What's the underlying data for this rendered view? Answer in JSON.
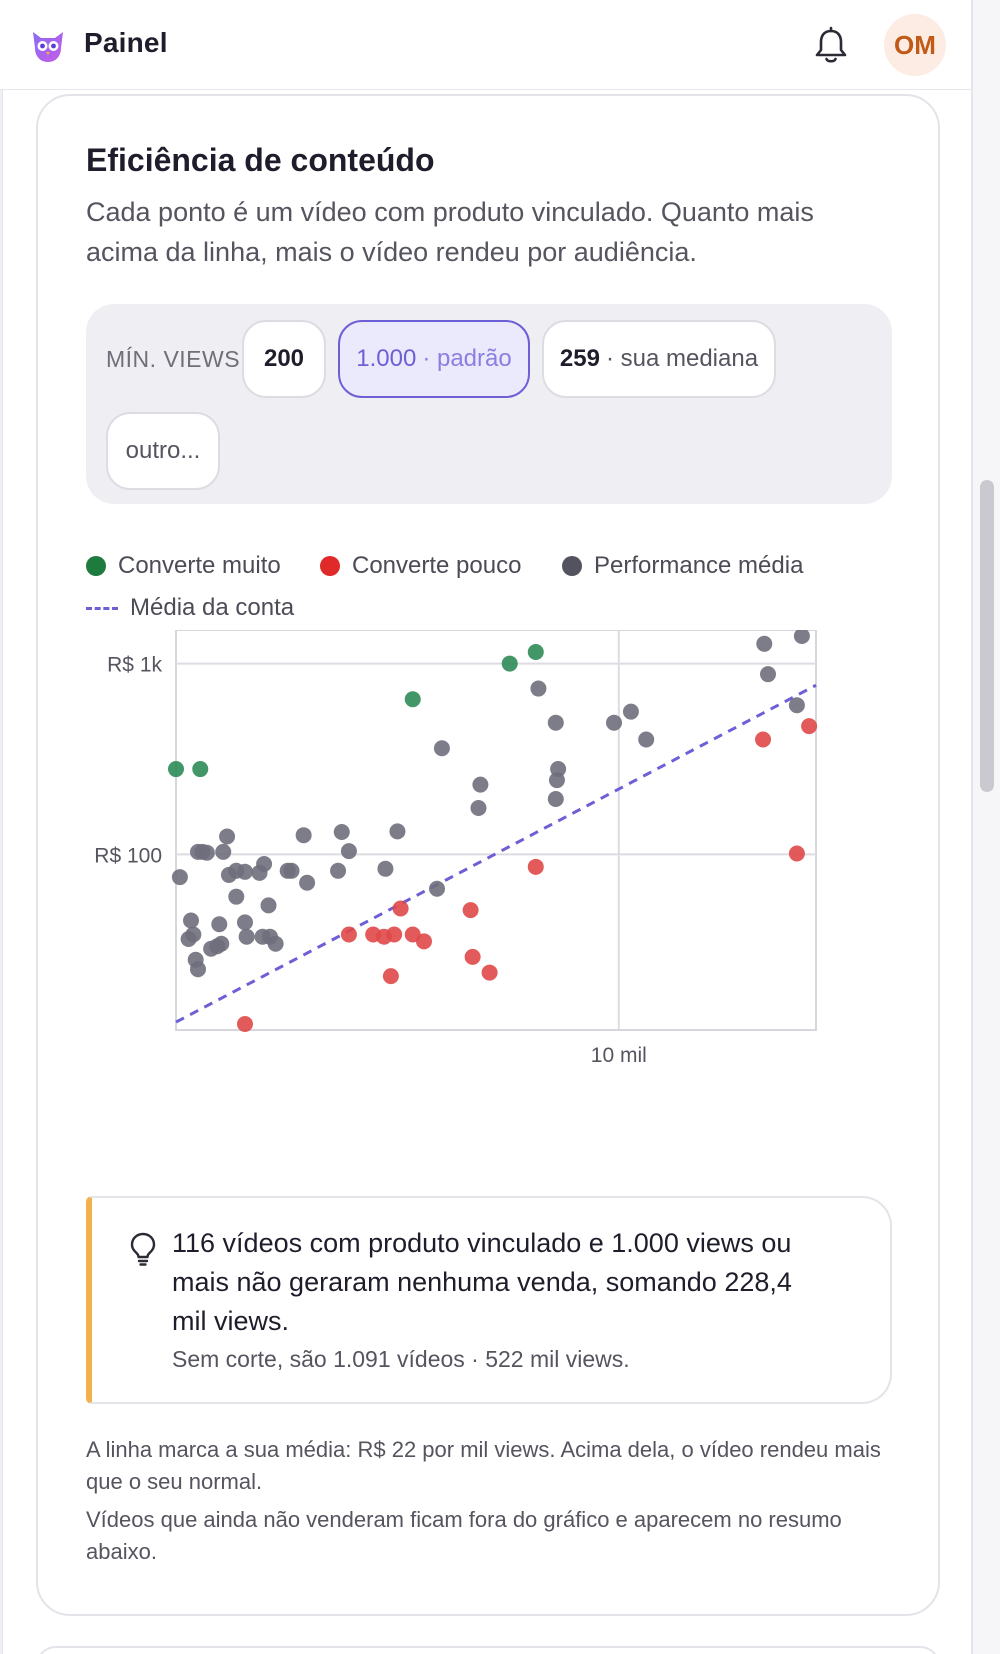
{
  "header": {
    "title": "Painel",
    "avatar_initials": "OM",
    "brand_color": "#7b5cf0",
    "logo_icon": "owl-logo-icon",
    "notification_icon": "bell-icon"
  },
  "card": {
    "title": "Eficiência de conteúdo",
    "subtitle": "Cada ponto é um vídeo com produto vinculado. Quanto mais acima da linha, mais o vídeo rendeu por audiência."
  },
  "filter": {
    "label": "MÍN. VIEWS",
    "chips": [
      {
        "value": "200",
        "suffix": "",
        "selected": false
      },
      {
        "value": "1.000",
        "suffix": "· padrão",
        "selected": true
      },
      {
        "value": "259",
        "suffix": "· sua mediana",
        "selected": false
      },
      {
        "value": "outro...",
        "suffix": "",
        "selected": false
      }
    ]
  },
  "legend": {
    "high": "Converte muito",
    "low": "Converte pouco",
    "mid": "Performance média",
    "avg_line": "Média da conta"
  },
  "colors": {
    "high": "#2e8b57",
    "low": "#e04848",
    "mid": "#6f6e7c",
    "avg_line": "#6d5fd6",
    "insight_accent": "#f2b14c"
  },
  "chart_data": {
    "type": "scatter",
    "x_scale": "log",
    "y_scale": "log",
    "xlim": [
      600,
      35000
    ],
    "ylim": [
      12,
      1500
    ],
    "x_ticks": [
      {
        "value": 10000,
        "label": "10 mil"
      }
    ],
    "y_ticks": [
      {
        "value": 1000,
        "label": "R$ 1k"
      },
      {
        "value": 100,
        "label": "R$ 100"
      }
    ],
    "grid": true,
    "average_line": {
      "label": "Média da conta",
      "revenue_per_1000_views": 22
    },
    "series": [
      {
        "name": "Converte muito",
        "category": "high",
        "points": [
          [
            600,
            280
          ],
          [
            700,
            280
          ],
          [
            2700,
            650
          ],
          [
            5000,
            1000
          ],
          [
            5900,
            1150
          ]
        ]
      },
      {
        "name": "Converte pouco",
        "category": "low",
        "points": [
          [
            930,
            12
          ],
          [
            1800,
            38
          ],
          [
            2100,
            38
          ],
          [
            2250,
            37
          ],
          [
            2500,
            52
          ],
          [
            2350,
            23
          ],
          [
            2400,
            38
          ],
          [
            2700,
            38
          ],
          [
            2900,
            35
          ],
          [
            3900,
            51
          ],
          [
            3950,
            29
          ],
          [
            4400,
            24
          ],
          [
            5900,
            86
          ],
          [
            25000,
            400
          ],
          [
            33500,
            470
          ],
          [
            31000,
            101
          ]
        ]
      },
      {
        "name": "Performance média",
        "category": "mid",
        "points": [
          [
            615,
            76
          ],
          [
            650,
            36
          ],
          [
            660,
            45
          ],
          [
            670,
            38
          ],
          [
            680,
            28
          ],
          [
            690,
            25
          ],
          [
            690,
            103
          ],
          [
            710,
            103
          ],
          [
            730,
            102
          ],
          [
            750,
            32
          ],
          [
            780,
            33
          ],
          [
            790,
            43
          ],
          [
            800,
            34
          ],
          [
            810,
            103
          ],
          [
            830,
            124
          ],
          [
            840,
            78
          ],
          [
            880,
            60
          ],
          [
            880,
            82
          ],
          [
            930,
            81
          ],
          [
            930,
            44
          ],
          [
            940,
            37
          ],
          [
            1020,
            80
          ],
          [
            1040,
            37
          ],
          [
            1050,
            89
          ],
          [
            1080,
            54
          ],
          [
            1090,
            37
          ],
          [
            1130,
            34
          ],
          [
            1220,
            82
          ],
          [
            1250,
            82
          ],
          [
            1350,
            126
          ],
          [
            1380,
            71
          ],
          [
            1680,
            82
          ],
          [
            1720,
            131
          ],
          [
            1800,
            104
          ],
          [
            2270,
            84
          ],
          [
            2450,
            132
          ],
          [
            3150,
            66
          ],
          [
            3250,
            360
          ],
          [
            4100,
            175
          ],
          [
            4150,
            232
          ],
          [
            6000,
            740
          ],
          [
            6700,
            490
          ],
          [
            6700,
            195
          ],
          [
            6800,
            280
          ],
          [
            6750,
            245
          ],
          [
            9700,
            490
          ],
          [
            10800,
            560
          ],
          [
            11900,
            400
          ],
          [
            25200,
            1270
          ],
          [
            25800,
            880
          ],
          [
            31000,
            605
          ],
          [
            32000,
            1420
          ]
        ]
      }
    ]
  },
  "insight": {
    "icon": "lightbulb-icon",
    "main": "116 vídeos com produto vinculado e 1.000 views ou mais não geraram nenhuma venda, somando 228,4 mil views.",
    "sub": "Sem corte, são 1.091 vídeos · 522 mil views."
  },
  "notes": {
    "line1": "A linha marca a sua média: R$ 22 por mil views. Acima dela, o vídeo rendeu mais que o seu normal.",
    "line2": "Vídeos que ainda não venderam ficam fora do gráfico e aparecem no resumo abaixo."
  }
}
